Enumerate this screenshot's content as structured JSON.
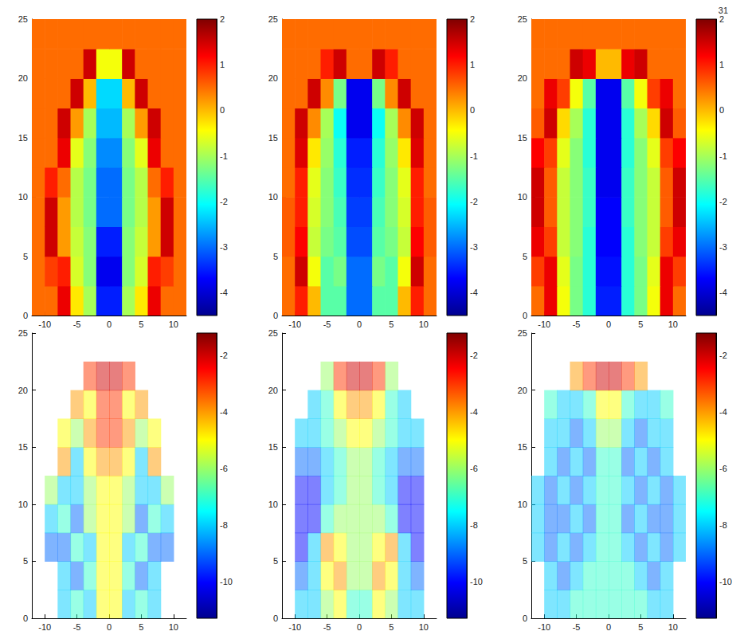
{
  "page_number": "31",
  "chart_data": [
    {
      "type": "heatmap",
      "x": [
        -11,
        -9,
        -7,
        -5,
        -3,
        -1,
        1,
        3,
        5,
        7,
        9,
        11
      ],
      "y": [
        1.25,
        3.75,
        6.25,
        8.75,
        11.25,
        13.75,
        16.25,
        18.75,
        21.25,
        23.75
      ],
      "values": [
        [
          0.5,
          0.5,
          1.3,
          -0.3,
          -1.0,
          -3.5,
          -3.5,
          -1.0,
          -0.3,
          1.3,
          0.5,
          0.5
        ],
        [
          0.5,
          0.8,
          1.0,
          -0.7,
          -1.2,
          -3.8,
          -3.8,
          -1.2,
          -0.7,
          1.0,
          0.8,
          0.5
        ],
        [
          0.5,
          1.5,
          0.2,
          -0.8,
          -1.2,
          -3.5,
          -3.5,
          -1.2,
          -0.8,
          0.2,
          1.5,
          0.5
        ],
        [
          0.5,
          1.5,
          0.2,
          -0.9,
          -1.3,
          -3.0,
          -3.0,
          -1.3,
          -0.9,
          0.2,
          1.5,
          0.5
        ],
        [
          0.5,
          1.0,
          0.5,
          -0.9,
          -1.3,
          -3.0,
          -3.0,
          -1.3,
          -0.9,
          0.5,
          1.0,
          0.5
        ],
        [
          0.5,
          0.5,
          1.3,
          -0.6,
          -1.2,
          -2.8,
          -2.8,
          -1.2,
          -0.6,
          1.3,
          0.5,
          0.5
        ],
        [
          0.5,
          0.5,
          1.5,
          0.2,
          -1.0,
          -2.5,
          -2.5,
          -1.0,
          0.2,
          1.5,
          0.5,
          0.5
        ],
        [
          0.5,
          0.5,
          0.5,
          1.5,
          0.0,
          -2.3,
          -2.3,
          0.0,
          1.5,
          0.5,
          0.5,
          0.5
        ],
        [
          0.5,
          0.5,
          0.5,
          0.5,
          1.5,
          -0.5,
          -0.5,
          1.5,
          0.5,
          0.5,
          0.5,
          0.5
        ],
        [
          0.5,
          0.5,
          0.5,
          0.5,
          0.5,
          0.5,
          0.5,
          0.5,
          0.5,
          0.5,
          0.5,
          0.5
        ]
      ],
      "xlim": [
        -12,
        12
      ],
      "ylim": [
        0,
        25
      ],
      "xticks": [
        -10,
        -5,
        0,
        5,
        10
      ],
      "yticks": [
        0,
        5,
        10,
        15,
        20,
        25
      ],
      "colorbar_range": [
        -4.5,
        2
      ],
      "colorbar_ticks": [
        -4,
        -3,
        -2,
        -1,
        0,
        1,
        2
      ]
    },
    {
      "type": "heatmap",
      "x": [
        -11,
        -9,
        -7,
        -5,
        -3,
        -1,
        1,
        3,
        5,
        7,
        9,
        11
      ],
      "y": [
        1.25,
        3.75,
        6.25,
        8.75,
        11.25,
        13.75,
        16.25,
        18.75,
        21.25,
        23.75
      ],
      "values": [
        [
          0.5,
          1.0,
          0.0,
          -1.5,
          -1.5,
          -3.0,
          -3.0,
          -1.5,
          -1.5,
          0.0,
          1.0,
          0.5
        ],
        [
          0.5,
          1.5,
          -0.5,
          -1.5,
          -1.3,
          -3.0,
          -3.0,
          -1.3,
          -1.5,
          -0.5,
          1.5,
          0.5
        ],
        [
          0.6,
          1.2,
          -0.8,
          -1.3,
          -1.5,
          -3.2,
          -3.2,
          -1.5,
          -1.3,
          -0.8,
          1.2,
          0.6
        ],
        [
          0.6,
          1.0,
          -0.7,
          -1.2,
          -1.6,
          -3.3,
          -3.3,
          -1.6,
          -1.2,
          -0.7,
          1.0,
          0.6
        ],
        [
          0.5,
          1.0,
          -0.6,
          -1.2,
          -1.7,
          -3.4,
          -3.4,
          -1.7,
          -1.2,
          -0.6,
          1.0,
          0.5
        ],
        [
          0.5,
          1.4,
          -0.3,
          -1.1,
          -1.8,
          -3.5,
          -3.5,
          -1.8,
          -1.1,
          -0.3,
          1.4,
          0.5
        ],
        [
          0.5,
          1.5,
          0.3,
          -1.0,
          -2.0,
          -3.8,
          -3.8,
          -2.0,
          -1.0,
          0.3,
          1.5,
          0.5
        ],
        [
          0.5,
          0.5,
          1.5,
          0.3,
          -1.3,
          -3.8,
          -3.8,
          -1.3,
          0.3,
          1.5,
          0.5,
          0.5
        ],
        [
          0.5,
          0.5,
          0.5,
          1.0,
          1.5,
          0.5,
          0.5,
          1.5,
          1.0,
          0.5,
          0.5,
          0.5
        ],
        [
          0.5,
          0.5,
          0.5,
          0.5,
          0.5,
          0.5,
          0.5,
          0.5,
          0.5,
          0.5,
          0.5,
          0.5
        ]
      ],
      "xlim": [
        -12,
        12
      ],
      "ylim": [
        0,
        25
      ],
      "xticks": [
        -10,
        -5,
        0,
        5,
        10
      ],
      "yticks": [
        0,
        5,
        10,
        15,
        20,
        25
      ],
      "colorbar_range": [
        -4.5,
        2
      ],
      "colorbar_ticks": [
        -4,
        -3,
        -2,
        -1,
        0,
        1,
        2
      ]
    },
    {
      "type": "heatmap",
      "x": [
        -11,
        -9,
        -7,
        -5,
        -3,
        -1,
        1,
        3,
        5,
        7,
        9,
        11
      ],
      "y": [
        1.25,
        3.75,
        6.25,
        8.75,
        11.25,
        13.75,
        16.25,
        18.75,
        21.25,
        23.75
      ],
      "values": [
        [
          0.5,
          1.3,
          -0.5,
          -1.3,
          -1.8,
          -3.5,
          -3.5,
          -1.8,
          -1.3,
          -0.5,
          1.3,
          0.5
        ],
        [
          0.8,
          1.3,
          -0.6,
          -1.3,
          -1.8,
          -3.6,
          -3.6,
          -1.8,
          -1.3,
          -0.6,
          1.3,
          0.8
        ],
        [
          1.3,
          0.8,
          -0.8,
          -1.2,
          -1.8,
          -3.7,
          -3.7,
          -1.8,
          -1.2,
          -0.8,
          0.8,
          1.3
        ],
        [
          1.5,
          0.6,
          -0.8,
          -1.2,
          -1.7,
          -3.7,
          -3.7,
          -1.7,
          -1.2,
          -0.8,
          0.6,
          1.5
        ],
        [
          1.5,
          0.6,
          -0.8,
          -1.2,
          -1.7,
          -3.8,
          -3.8,
          -1.7,
          -1.2,
          -0.8,
          0.6,
          1.5
        ],
        [
          1.2,
          0.8,
          -0.6,
          -1.2,
          -1.8,
          -3.8,
          -3.8,
          -1.8,
          -1.2,
          -0.6,
          0.8,
          1.2
        ],
        [
          0.6,
          1.5,
          -0.2,
          -1.0,
          -1.8,
          -3.8,
          -3.8,
          -1.8,
          -1.0,
          -0.2,
          1.5,
          0.6
        ],
        [
          0.5,
          1.3,
          0.8,
          -0.5,
          -1.5,
          -3.8,
          -3.8,
          -1.5,
          -0.5,
          0.8,
          1.3,
          0.5
        ],
        [
          0.5,
          0.5,
          0.5,
          1.5,
          1.3,
          0.0,
          0.0,
          1.3,
          1.5,
          0.5,
          0.5,
          0.5
        ],
        [
          0.5,
          0.5,
          0.5,
          0.5,
          0.5,
          0.5,
          0.5,
          0.5,
          0.5,
          0.5,
          0.5,
          0.5
        ]
      ],
      "xlim": [
        -12,
        12
      ],
      "ylim": [
        0,
        25
      ],
      "xticks": [
        -10,
        -5,
        0,
        5,
        10
      ],
      "yticks": [
        0,
        5,
        10,
        15,
        20,
        25
      ],
      "colorbar_range": [
        -4.5,
        2
      ],
      "colorbar_ticks": [
        -4,
        -3,
        -2,
        -1,
        0,
        1,
        2
      ]
    },
    {
      "type": "contour",
      "x": [
        -11,
        -9,
        -7,
        -5,
        -3,
        -1,
        1,
        3,
        5,
        7,
        9,
        11
      ],
      "y": [
        1.25,
        3.75,
        6.25,
        8.75,
        11.25,
        13.75,
        16.25,
        18.75,
        21.25,
        23.75
      ],
      "values": [
        [
          null,
          null,
          -8,
          -7,
          -8,
          -5,
          -5,
          -8,
          -7,
          -8,
          null,
          null
        ],
        [
          null,
          null,
          -8,
          -9,
          -7,
          -5,
          -5,
          -7,
          -9,
          -8,
          null,
          null
        ],
        [
          null,
          -9,
          -9,
          -7,
          -8,
          -5,
          -5,
          -8,
          -7,
          -9,
          -9,
          null
        ],
        [
          null,
          -8,
          -7,
          -9,
          -6,
          -5,
          -5,
          -6,
          -9,
          -7,
          -8,
          null
        ],
        [
          null,
          -6,
          -8,
          -8,
          -6,
          -5,
          -5,
          -6,
          -8,
          -8,
          -6,
          null
        ],
        [
          null,
          null,
          -4,
          -8,
          -5,
          -4,
          -4,
          -5,
          -8,
          -4,
          null,
          null
        ],
        [
          null,
          null,
          -5,
          -6,
          -4,
          -3,
          -3,
          -4,
          -6,
          -5,
          null,
          null
        ],
        [
          null,
          null,
          null,
          -4,
          -5,
          -3,
          -3,
          -5,
          -4,
          null,
          null,
          null
        ],
        [
          null,
          null,
          null,
          null,
          -3,
          -2,
          -2,
          -3,
          null,
          null,
          null,
          null
        ],
        [
          null,
          null,
          null,
          null,
          null,
          null,
          null,
          null,
          null,
          null,
          null,
          null
        ]
      ],
      "xlim": [
        -12,
        12
      ],
      "ylim": [
        0,
        25
      ],
      "xticks": [
        -10,
        -5,
        0,
        5,
        10
      ],
      "yticks": [
        0,
        5,
        10,
        15,
        20,
        25
      ],
      "colorbar_range": [
        -11.3,
        -1.2
      ],
      "colorbar_ticks": [
        -10,
        -8,
        -6,
        -4,
        -2
      ]
    },
    {
      "type": "contour",
      "x": [
        -11,
        -9,
        -7,
        -5,
        -3,
        -1,
        1,
        3,
        5,
        7,
        9,
        11
      ],
      "y": [
        1.25,
        3.75,
        6.25,
        8.75,
        11.25,
        13.75,
        16.25,
        18.75,
        21.25,
        23.75
      ],
      "values": [
        [
          null,
          -8,
          -8,
          -6,
          -5,
          -7,
          -7,
          -5,
          -6,
          -8,
          -8,
          null
        ],
        [
          null,
          -9,
          -8,
          -5,
          -4,
          -6,
          -6,
          -4,
          -5,
          -8,
          -9,
          null
        ],
        [
          null,
          -10,
          -8,
          -4,
          -5,
          -6,
          -6,
          -5,
          -4,
          -8,
          -10,
          null
        ],
        [
          null,
          -10,
          -10,
          -7,
          -6,
          -6,
          -6,
          -6,
          -7,
          -10,
          -10,
          null
        ],
        [
          null,
          -10,
          -10,
          -8,
          -7,
          -6,
          -6,
          -7,
          -8,
          -10,
          -10,
          null
        ],
        [
          null,
          -9,
          -9,
          -8,
          -7,
          -6,
          -6,
          -7,
          -8,
          -9,
          -9,
          null
        ],
        [
          null,
          -8,
          -8,
          -7,
          -6,
          -5,
          -5,
          -6,
          -7,
          -8,
          -8,
          null
        ],
        [
          null,
          null,
          -8,
          -7,
          -5,
          -4,
          -4,
          -5,
          -7,
          -8,
          null,
          null
        ],
        [
          null,
          null,
          null,
          -6,
          -3,
          -2,
          -2,
          -3,
          -6,
          null,
          null,
          null
        ],
        [
          null,
          null,
          null,
          null,
          null,
          null,
          null,
          null,
          null,
          null,
          null,
          null
        ]
      ],
      "xlim": [
        -12,
        12
      ],
      "ylim": [
        0,
        25
      ],
      "xticks": [
        -10,
        -5,
        0,
        5,
        10
      ],
      "yticks": [
        0,
        5,
        10,
        15,
        20,
        25
      ],
      "colorbar_range": [
        -11.3,
        -1.2
      ],
      "colorbar_ticks": [
        -10,
        -8,
        -6,
        -4,
        -2
      ]
    },
    {
      "type": "contour",
      "x": [
        -11,
        -9,
        -7,
        -5,
        -3,
        -1,
        1,
        3,
        5,
        7,
        9,
        11
      ],
      "y": [
        1.25,
        3.75,
        6.25,
        8.75,
        11.25,
        13.75,
        16.25,
        18.75,
        21.25,
        23.75
      ],
      "values": [
        [
          null,
          -8,
          -8,
          -7,
          -7,
          -7,
          -7,
          -7,
          -7,
          -8,
          -8,
          null
        ],
        [
          null,
          -8,
          -9,
          -8,
          -7,
          -7,
          -7,
          -7,
          -8,
          -9,
          -8,
          null
        ],
        [
          -8,
          -9,
          -8,
          -9,
          -8,
          -7,
          -7,
          -8,
          -9,
          -8,
          -9,
          -8
        ],
        [
          -8,
          -9,
          -9,
          -8,
          -9,
          -7,
          -7,
          -9,
          -8,
          -9,
          -9,
          -8
        ],
        [
          -8,
          -9,
          -8,
          -9,
          -8,
          -7,
          -7,
          -8,
          -9,
          -8,
          -9,
          -8
        ],
        [
          null,
          -8,
          -9,
          -8,
          -9,
          -7,
          -7,
          -9,
          -8,
          -9,
          -8,
          null
        ],
        [
          null,
          -8,
          -8,
          -9,
          -8,
          -6,
          -6,
          -8,
          -9,
          -8,
          -8,
          null
        ],
        [
          null,
          -7,
          -8,
          -8,
          -7,
          -5,
          -5,
          -7,
          -8,
          -8,
          -7,
          null
        ],
        [
          null,
          null,
          null,
          -4,
          -3,
          -2,
          -2,
          -3,
          -4,
          null,
          null,
          null
        ],
        [
          null,
          null,
          null,
          null,
          null,
          null,
          null,
          null,
          null,
          null,
          null,
          null
        ]
      ],
      "xlim": [
        -12,
        12
      ],
      "ylim": [
        0,
        25
      ],
      "xticks": [
        -10,
        -5,
        0,
        5,
        10
      ],
      "yticks": [
        0,
        5,
        10,
        15,
        20,
        25
      ],
      "colorbar_range": [
        -11.3,
        -1.2
      ],
      "colorbar_ticks": [
        -10,
        -8,
        -6,
        -4,
        -2
      ]
    }
  ]
}
